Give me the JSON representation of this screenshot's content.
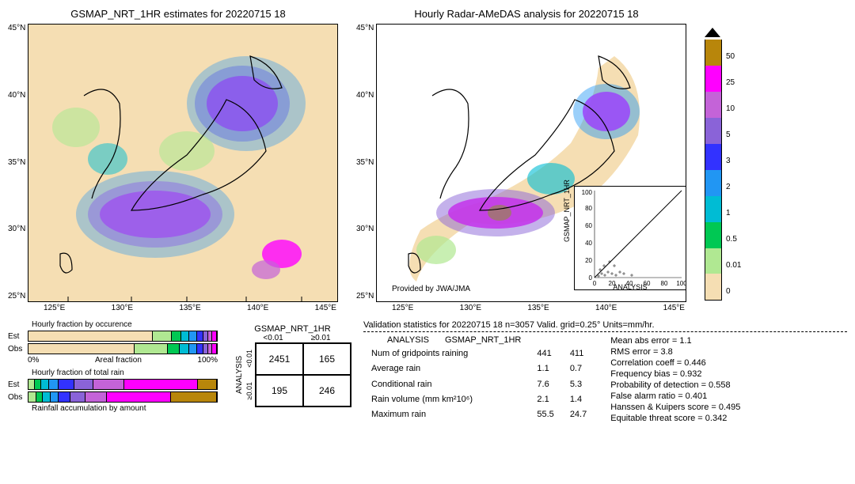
{
  "left_map": {
    "title": "GSMAP_NRT_1HR estimates for 20220715 18",
    "xticks": [
      "125°E",
      "130°E",
      "135°E",
      "140°E",
      "145°E"
    ],
    "yticks": [
      "45°N",
      "40°N",
      "35°N",
      "30°N",
      "25°N"
    ],
    "xlim": [
      120,
      150
    ],
    "ylim": [
      20,
      48
    ],
    "bg_color": "#f5deb3"
  },
  "right_map": {
    "title": "Hourly Radar-AMeDAS analysis for 20220715 18",
    "xticks": [
      "125°E",
      "130°E",
      "135°E",
      "140°E",
      "145°E"
    ],
    "yticks": [
      "45°N",
      "40°N",
      "35°N",
      "30°N",
      "25°N"
    ],
    "provided_by": "Provided by JWA/JMA",
    "inset": {
      "xlabel": "ANALYSIS",
      "ylabel": "GSMAP_NRT_1HR",
      "xlim": [
        0,
        100
      ],
      "ylim": [
        0,
        100
      ],
      "ticks": [
        0,
        20,
        40,
        60,
        80,
        100
      ]
    }
  },
  "colorbar": {
    "levels": [
      50,
      25,
      10,
      5,
      3,
      2,
      1,
      0.5,
      0.01,
      0
    ],
    "colors": [
      "#b8860b",
      "#ff00ff",
      "#c463d8",
      "#8a63d8",
      "#3232ff",
      "#2196f3",
      "#00bcd4",
      "#00c853",
      "#b0e892",
      "#f5deb3"
    ],
    "triangle_top_color": "#000000"
  },
  "fraction_charts": {
    "occ_title": "Hourly fraction by occurence",
    "rain_title": "Hourly fraction of total rain",
    "caption": "Rainfall accumulation by amount",
    "row_labels": [
      "Est",
      "Obs"
    ],
    "axis_labels": [
      "0%",
      "Areal fraction",
      "100%"
    ],
    "occ_est_segments": [
      {
        "color": "#f5deb3",
        "width": 68
      },
      {
        "color": "#b0e892",
        "width": 10
      },
      {
        "color": "#00c853",
        "width": 5
      },
      {
        "color": "#00bcd4",
        "width": 4
      },
      {
        "color": "#2196f3",
        "width": 4
      },
      {
        "color": "#3232ff",
        "width": 3
      },
      {
        "color": "#8a63d8",
        "width": 2
      },
      {
        "color": "#c463d8",
        "width": 2
      },
      {
        "color": "#ff00ff",
        "width": 2
      }
    ],
    "occ_obs_segments": [
      {
        "color": "#f5deb3",
        "width": 58
      },
      {
        "color": "#b0e892",
        "width": 18
      },
      {
        "color": "#00c853",
        "width": 6
      },
      {
        "color": "#00bcd4",
        "width": 5
      },
      {
        "color": "#2196f3",
        "width": 4
      },
      {
        "color": "#3232ff",
        "width": 3
      },
      {
        "color": "#8a63d8",
        "width": 2
      },
      {
        "color": "#c463d8",
        "width": 2
      },
      {
        "color": "#ff00ff",
        "width": 2
      }
    ],
    "rain_est_segments": [
      {
        "color": "#b0e892",
        "width": 3
      },
      {
        "color": "#00c853",
        "width": 3
      },
      {
        "color": "#00bcd4",
        "width": 4
      },
      {
        "color": "#2196f3",
        "width": 5
      },
      {
        "color": "#3232ff",
        "width": 8
      },
      {
        "color": "#8a63d8",
        "width": 10
      },
      {
        "color": "#c463d8",
        "width": 17
      },
      {
        "color": "#ff00ff",
        "width": 40
      },
      {
        "color": "#b8860b",
        "width": 10
      }
    ],
    "rain_obs_segments": [
      {
        "color": "#b0e892",
        "width": 4
      },
      {
        "color": "#00c853",
        "width": 3
      },
      {
        "color": "#00bcd4",
        "width": 4
      },
      {
        "color": "#2196f3",
        "width": 4
      },
      {
        "color": "#3232ff",
        "width": 6
      },
      {
        "color": "#8a63d8",
        "width": 8
      },
      {
        "color": "#c463d8",
        "width": 11
      },
      {
        "color": "#ff00ff",
        "width": 35
      },
      {
        "color": "#b8860b",
        "width": 25
      }
    ]
  },
  "contingency": {
    "col_title": "GSMAP_NRT_1HR",
    "row_title": "ANALYSIS",
    "col_labels": [
      "<0.01",
      "≥0.01"
    ],
    "row_labels": [
      "<0.01",
      "≥0.01"
    ],
    "values": [
      [
        2451,
        165
      ],
      [
        195,
        246
      ]
    ]
  },
  "validation": {
    "title": "Validation statistics for 20220715 18  n=3057 Valid. grid=0.25° Units=mm/hr.",
    "col_headers": [
      "ANALYSIS",
      "GSMAP_NRT_1HR"
    ],
    "rows": [
      {
        "label": "Num of gridpoints raining",
        "v1": "441",
        "v2": "411"
      },
      {
        "label": "Average rain",
        "v1": "1.1",
        "v2": "0.7"
      },
      {
        "label": "Conditional rain",
        "v1": "7.6",
        "v2": "5.3"
      },
      {
        "label": "Rain volume (mm km²10⁶)",
        "v1": "2.1",
        "v2": "1.4"
      },
      {
        "label": "Maximum rain",
        "v1": "55.5",
        "v2": "24.7"
      }
    ],
    "metrics": [
      {
        "label": "Mean abs error =",
        "value": "1.1"
      },
      {
        "label": "RMS error =",
        "value": "3.8"
      },
      {
        "label": "Correlation coeff =",
        "value": "0.446"
      },
      {
        "label": "Frequency bias =",
        "value": "0.932"
      },
      {
        "label": "Probability of detection =",
        "value": "0.558"
      },
      {
        "label": "False alarm ratio =",
        "value": "0.401"
      },
      {
        "label": "Hanssen & Kuipers score =",
        "value": "0.495"
      },
      {
        "label": "Equitable threat score =",
        "value": "0.342"
      }
    ]
  }
}
